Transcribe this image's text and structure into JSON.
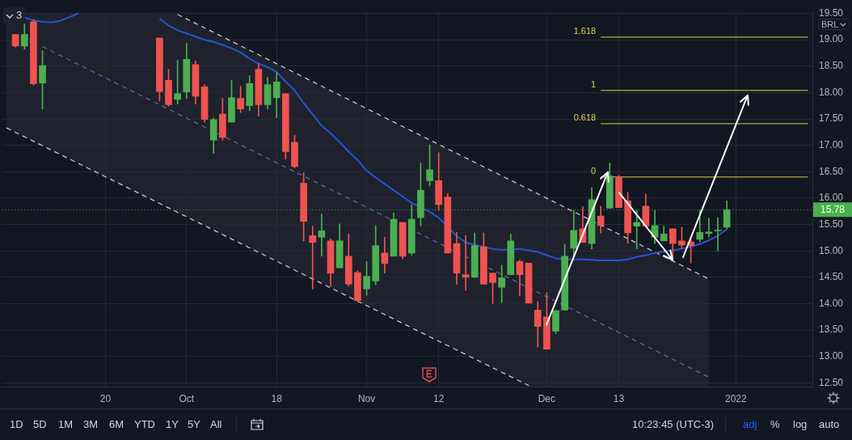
{
  "chart_data": {
    "type": "candlestick",
    "categories": [
      null,
      null,
      null,
      null,
      null,
      null,
      null,
      null,
      null,
      null,
      null,
      "20",
      null,
      null,
      null,
      null,
      null,
      null,
      null,
      null,
      "Oct",
      null,
      null,
      null,
      null,
      null,
      null,
      null,
      null,
      null,
      "18",
      null,
      null,
      null,
      null,
      null,
      null,
      null,
      null,
      null,
      "Nov",
      null,
      null,
      null,
      null,
      null,
      null,
      null,
      "12",
      null,
      null,
      null,
      null,
      null,
      null,
      null,
      null,
      null,
      null,
      null,
      "Dec",
      null,
      null,
      null,
      null,
      null,
      null,
      null,
      "13",
      null,
      null,
      null,
      null,
      null,
      null,
      null,
      null,
      null,
      null,
      null,
      null,
      "2022",
      null,
      null,
      null,
      null,
      null,
      null,
      null,
      null
    ],
    "ohlc": [
      null,
      [
        19.1,
        19.1,
        18.86,
        18.88
      ],
      [
        18.88,
        19.3,
        18.82,
        19.1
      ],
      [
        19.34,
        19.38,
        18.14,
        18.17
      ],
      [
        18.18,
        18.79,
        17.69,
        18.51
      ],
      null,
      null,
      null,
      null,
      null,
      null,
      null,
      null,
      null,
      null,
      null,
      null,
      [
        19.03,
        19.03,
        17.84,
        18.02
      ],
      [
        18.23,
        18.44,
        17.74,
        17.77
      ],
      [
        17.87,
        18.61,
        17.78,
        17.98
      ],
      [
        18.01,
        18.93,
        17.89,
        18.63
      ],
      [
        18.53,
        18.6,
        17.78,
        17.93
      ],
      [
        18.11,
        18.15,
        17.44,
        17.49
      ],
      [
        17.1,
        17.52,
        16.85,
        17.49
      ],
      [
        17.59,
        17.89,
        17.1,
        17.15
      ],
      [
        17.44,
        18.23,
        17.44,
        17.9
      ],
      [
        17.89,
        18.12,
        17.62,
        17.69
      ],
      [
        17.75,
        18.32,
        17.66,
        18.17
      ],
      [
        18.44,
        18.55,
        17.55,
        17.77
      ],
      [
        17.77,
        18.29,
        17.69,
        18.15
      ],
      [
        17.9,
        18.38,
        17.52,
        18.2
      ],
      [
        17.98,
        17.98,
        16.74,
        16.88
      ],
      [
        17.06,
        17.19,
        16.57,
        16.6
      ],
      [
        16.28,
        16.48,
        15.19,
        15.56
      ],
      [
        15.29,
        15.47,
        14.28,
        15.16
      ],
      [
        15.26,
        15.7,
        14.9,
        15.38
      ],
      [
        15.19,
        15.23,
        14.33,
        14.58
      ],
      [
        14.68,
        15.51,
        14.68,
        15.19
      ],
      [
        14.9,
        15.32,
        14.33,
        14.37
      ],
      [
        14.59,
        14.62,
        14.04,
        14.06
      ],
      [
        14.28,
        14.8,
        14.16,
        14.52
      ],
      [
        14.43,
        15.48,
        14.36,
        15.1
      ],
      [
        14.96,
        15.26,
        14.58,
        14.76
      ],
      [
        14.9,
        15.72,
        14.9,
        15.6
      ],
      [
        15.54,
        15.54,
        14.85,
        14.9
      ],
      [
        14.96,
        15.87,
        14.92,
        15.6
      ],
      [
        15.63,
        16.66,
        15.47,
        16.15
      ],
      [
        16.33,
        17.01,
        16.23,
        16.54
      ],
      [
        16.33,
        16.86,
        15.77,
        15.88
      ],
      [
        16.02,
        16.09,
        14.96,
        14.96
      ],
      [
        15.14,
        15.35,
        14.37,
        14.58
      ],
      [
        14.55,
        15.29,
        14.25,
        14.5
      ],
      [
        14.5,
        15.34,
        14.5,
        15.1
      ],
      [
        15.08,
        15.34,
        14.37,
        14.37
      ],
      [
        14.58,
        14.58,
        14.0,
        14.4
      ],
      [
        14.31,
        14.73,
        14.02,
        14.49
      ],
      [
        14.55,
        15.32,
        14.55,
        15.19
      ],
      [
        14.8,
        14.83,
        14.15,
        14.55
      ],
      [
        14.77,
        14.77,
        14.01,
        14.01
      ],
      [
        13.88,
        14.04,
        13.18,
        13.57
      ],
      [
        13.75,
        14.21,
        13.14,
        13.14
      ],
      [
        13.48,
        13.87,
        13.44,
        13.87
      ],
      [
        13.88,
        15.13,
        13.88,
        14.9
      ],
      [
        15.05,
        15.77,
        14.88,
        15.39
      ],
      [
        15.42,
        15.84,
        15.16,
        15.16
      ],
      [
        15.14,
        16.2,
        15.04,
        15.97
      ],
      [
        15.66,
        15.85,
        15.34,
        15.48
      ],
      [
        15.81,
        16.66,
        15.81,
        16.42
      ],
      [
        16.39,
        16.43,
        15.82,
        15.82
      ],
      [
        15.95,
        16.11,
        15.14,
        15.34
      ],
      [
        15.47,
        15.77,
        15.04,
        15.54
      ],
      [
        15.85,
        16.08,
        15.47,
        15.47
      ],
      [
        15.26,
        15.77,
        15.14,
        15.48
      ],
      [
        15.19,
        15.47,
        15.19,
        15.32
      ],
      [
        15.42,
        15.42,
        14.85,
        15.14
      ],
      [
        15.19,
        15.45,
        15.04,
        15.11
      ],
      [
        15.17,
        15.26,
        14.77,
        15.1
      ],
      [
        15.22,
        15.77,
        15.17,
        15.35
      ],
      [
        15.33,
        15.62,
        15.26,
        15.36
      ],
      [
        15.38,
        15.63,
        15.0,
        15.39
      ],
      [
        15.45,
        15.95,
        15.42,
        15.78
      ],
      null,
      null,
      null,
      null,
      null,
      null,
      null,
      null,
      null
    ],
    "colors": [
      null,
      "#ef5350",
      "#4caf50",
      "#ef5350",
      "#4caf50",
      null,
      null,
      null,
      null,
      null,
      null,
      null,
      null,
      null,
      null,
      null,
      null,
      "#ef5350",
      "#ef5350",
      "#4caf50",
      "#4caf50",
      "#ef5350",
      "#ef5350",
      "#4caf50",
      "#ef5350",
      "#4caf50",
      "#ef5350",
      "#4caf50",
      "#ef5350",
      "#4caf50",
      "#4caf50",
      "#ef5350",
      "#ef5350",
      "#ef5350",
      "#ef5350",
      "#4caf50",
      "#ef5350",
      "#4caf50",
      "#ef5350",
      "#ef5350",
      "#4caf50",
      "#4caf50",
      "#ef5350",
      "#4caf50",
      "#ef5350",
      "#4caf50",
      "#4caf50",
      "#4caf50",
      "#ef5350",
      "#ef5350",
      "#ef5350",
      "#ef5350",
      "#4caf50",
      "#ef5350",
      "#ef5350",
      "#4caf50",
      "#4caf50",
      "#ef5350",
      "#ef5350",
      "#ef5350",
      "#ef5350",
      "#4caf50",
      "#4caf50",
      "#4caf50",
      "#ef5350",
      "#4caf50",
      "#ef5350",
      "#4caf50",
      "#ef5350",
      "#ef5350",
      "#4caf50",
      "#ef5350",
      "#4caf50",
      "#4caf50",
      "#ef5350",
      "#ef5350",
      "#ef5350",
      "#4caf50",
      "#4caf50",
      "#4caf50",
      "#4caf50",
      null,
      null,
      null,
      null,
      null,
      null,
      null,
      null,
      null
    ],
    "series": [
      {
        "type": "line",
        "color": "#2255d4",
        "values": [
          null,
          19.47,
          19.42,
          19.37,
          19.34,
          19.33,
          19.36,
          19.43,
          19.5,
          null,
          null,
          null,
          null,
          null,
          null,
          null,
          null,
          null,
          null,
          null,
          null,
          null,
          null,
          null,
          null,
          null,
          null,
          null,
          null,
          null,
          null,
          null,
          null,
          null,
          null,
          null,
          null,
          null,
          null,
          null,
          null,
          null,
          null,
          null,
          null,
          null,
          null,
          null,
          null,
          null,
          null,
          null,
          null,
          null,
          null,
          null,
          null,
          null,
          null,
          null,
          null,
          null,
          null,
          null,
          null,
          null,
          null,
          null,
          null,
          null,
          null,
          null,
          null,
          null,
          null,
          null,
          null,
          null,
          null,
          null,
          null,
          null,
          null,
          null,
          null,
          null,
          null,
          null,
          null,
          null
        ]
      },
      {
        "type": "line",
        "color": "#2255d4",
        "values": [
          null,
          null,
          null,
          null,
          null,
          null,
          null,
          null,
          null,
          null,
          null,
          null,
          null,
          null,
          null,
          null,
          null,
          19.4,
          19.27,
          19.18,
          19.12,
          19.06,
          19.0,
          18.96,
          18.9,
          18.84,
          18.76,
          18.64,
          18.55,
          18.48,
          18.39,
          18.21,
          18.04,
          17.8,
          17.59,
          17.37,
          17.23,
          17.06,
          16.88,
          16.72,
          16.52,
          16.39,
          16.27,
          16.15,
          16.03,
          15.91,
          null,
          15.74,
          15.63,
          null,
          15.28,
          15.16,
          15.11,
          null,
          15.04,
          15.02,
          null,
          15.04,
          15.01,
          14.98,
          14.92,
          14.86,
          null,
          14.84,
          14.84,
          14.83,
          14.82,
          14.82,
          14.82,
          14.84,
          14.89,
          14.92,
          14.96,
          14.99,
          15.01,
          15.04,
          15.08,
          15.13,
          15.2,
          15.29,
          15.41,
          null,
          null,
          null,
          null,
          null,
          null,
          null,
          null,
          null
        ]
      },
      {
        "type": "line",
        "color": "#d1d4dc",
        "line_style": "dashed",
        "values": [
          null,
          null,
          null,
          null,
          null,
          null,
          null,
          null,
          null,
          null,
          null,
          null,
          null,
          null,
          null,
          null,
          null,
          null,
          null,
          19.48,
          null,
          null,
          null,
          null,
          null,
          null,
          null,
          null,
          null,
          null,
          null,
          null,
          null,
          null,
          null,
          null,
          null,
          null,
          null,
          null,
          null,
          null,
          null,
          null,
          null,
          null,
          null,
          null,
          null,
          null,
          null,
          null,
          null,
          null,
          null,
          null,
          null,
          null,
          null,
          null,
          null,
          null,
          null,
          null,
          null,
          null,
          null,
          null,
          null,
          null,
          null,
          null,
          null,
          null,
          null,
          null,
          null,
          null,
          14.47,
          null,
          null,
          null,
          null,
          null,
          null,
          null,
          null,
          null,
          null,
          null
        ]
      },
      {
        "type": "line",
        "color": "#d1d4dc",
        "line_style": "dashed",
        "values": [
          17.33,
          null,
          null,
          null,
          null,
          null,
          null,
          null,
          null,
          null,
          null,
          null,
          null,
          null,
          null,
          null,
          null,
          null,
          null,
          null,
          null,
          null,
          null,
          null,
          null,
          null,
          null,
          null,
          null,
          null,
          null,
          null,
          null,
          null,
          null,
          null,
          null,
          null,
          null,
          null,
          null,
          null,
          null,
          null,
          null,
          null,
          null,
          null,
          null,
          null,
          null,
          null,
          null,
          null,
          null,
          null,
          null,
          null,
          12.45,
          null,
          null,
          null,
          null,
          null,
          null,
          null,
          null,
          null,
          null,
          null,
          null,
          null,
          null,
          null,
          null,
          null,
          null,
          null,
          null,
          null,
          null,
          null,
          null,
          null,
          null,
          null,
          null,
          null,
          null,
          null
        ]
      },
      {
        "type": "line",
        "color": "#5a6bb0",
        "line_style": "dashed",
        "values": [
          null,
          null,
          null,
          null,
          18.87,
          null,
          null,
          null,
          null,
          null,
          null,
          null,
          null,
          null,
          null,
          null,
          null,
          null,
          null,
          null,
          null,
          null,
          null,
          null,
          null,
          null,
          null,
          null,
          null,
          null,
          null,
          null,
          null,
          null,
          null,
          null,
          null,
          null,
          null,
          null,
          null,
          null,
          null,
          null,
          null,
          null,
          null,
          null,
          null,
          null,
          null,
          null,
          null,
          null,
          null,
          null,
          null,
          null,
          null,
          null,
          null,
          null,
          null,
          null,
          null,
          null,
          null,
          null,
          null,
          null,
          null,
          null,
          null,
          null,
          null,
          null,
          null,
          null,
          12.61,
          null,
          null,
          null,
          null,
          null,
          null,
          null,
          null,
          null,
          null,
          null
        ]
      },
      {
        "type": "line",
        "name": "1.618",
        "color": "#e0cf4a",
        "values": [
          null,
          null,
          null,
          null,
          null,
          null,
          null,
          null,
          null,
          null,
          null,
          null,
          null,
          null,
          null,
          null,
          null,
          null,
          null,
          null,
          null,
          null,
          null,
          null,
          null,
          null,
          null,
          null,
          null,
          null,
          null,
          null,
          null,
          null,
          null,
          null,
          null,
          null,
          null,
          null,
          null,
          null,
          null,
          null,
          null,
          null,
          null,
          null,
          null,
          null,
          null,
          null,
          null,
          null,
          null,
          null,
          null,
          null,
          null,
          null,
          null,
          null,
          null,
          null,
          null,
          null,
          19.05,
          null,
          null,
          null,
          null,
          null,
          null,
          null,
          null,
          null,
          null,
          null,
          null,
          null,
          null,
          null,
          null,
          null,
          null,
          null,
          null,
          null,
          null,
          19.05
        ]
      },
      {
        "type": "line",
        "name": "1",
        "color": "#e0cf4a",
        "values": [
          null,
          null,
          null,
          null,
          null,
          null,
          null,
          null,
          null,
          null,
          null,
          null,
          null,
          null,
          null,
          null,
          null,
          null,
          null,
          null,
          null,
          null,
          null,
          null,
          null,
          null,
          null,
          null,
          null,
          null,
          null,
          null,
          null,
          null,
          null,
          null,
          null,
          null,
          null,
          null,
          null,
          null,
          null,
          null,
          null,
          null,
          null,
          null,
          null,
          null,
          null,
          null,
          null,
          null,
          null,
          null,
          null,
          null,
          null,
          null,
          null,
          null,
          null,
          null,
          null,
          null,
          18.04,
          null,
          null,
          null,
          null,
          null,
          null,
          null,
          null,
          null,
          null,
          null,
          null,
          null,
          null,
          null,
          null,
          null,
          null,
          null,
          null,
          null,
          null,
          18.04
        ]
      },
      {
        "type": "line",
        "name": "0.618",
        "color": "#e0cf4a",
        "values": [
          null,
          null,
          null,
          null,
          null,
          null,
          null,
          null,
          null,
          null,
          null,
          null,
          null,
          null,
          null,
          null,
          null,
          null,
          null,
          null,
          null,
          null,
          null,
          null,
          null,
          null,
          null,
          null,
          null,
          null,
          null,
          null,
          null,
          null,
          null,
          null,
          null,
          null,
          null,
          null,
          null,
          null,
          null,
          null,
          null,
          null,
          null,
          null,
          null,
          null,
          null,
          null,
          null,
          null,
          null,
          null,
          null,
          null,
          null,
          null,
          null,
          null,
          null,
          null,
          null,
          null,
          17.41,
          null,
          null,
          null,
          null,
          null,
          null,
          null,
          null,
          null,
          null,
          null,
          null,
          null,
          null,
          null,
          null,
          null,
          null,
          null,
          null,
          null,
          null,
          17.41
        ]
      },
      {
        "type": "line",
        "name": "0",
        "color": "#e0cf4a",
        "values": [
          null,
          null,
          null,
          null,
          null,
          null,
          null,
          null,
          null,
          null,
          null,
          null,
          null,
          null,
          null,
          null,
          null,
          null,
          null,
          null,
          null,
          null,
          null,
          null,
          null,
          null,
          null,
          null,
          null,
          null,
          null,
          null,
          null,
          null,
          null,
          null,
          null,
          null,
          null,
          null,
          null,
          null,
          null,
          null,
          null,
          null,
          null,
          null,
          null,
          null,
          null,
          null,
          null,
          null,
          null,
          null,
          null,
          null,
          null,
          null,
          null,
          null,
          null,
          null,
          null,
          null,
          16.4,
          null,
          null,
          null,
          null,
          null,
          null,
          null,
          null,
          null,
          null,
          null,
          null,
          null,
          null,
          null,
          null,
          null,
          null,
          null,
          null,
          null,
          null,
          16.4
        ]
      }
    ],
    "ylim": [
      12.43,
      19.52
    ],
    "yticks": [
      {
        "value": 12.5,
        "label": "12.50"
      },
      {
        "value": 13,
        "label": "13.00"
      },
      {
        "value": 13.5,
        "label": "13.50"
      },
      {
        "value": 14,
        "label": "14.00"
      },
      {
        "value": 14.5,
        "label": "14.50"
      },
      {
        "value": 15,
        "label": "15.00"
      },
      {
        "value": 15.5,
        "label": "15.50"
      },
      {
        "value": 16,
        "label": "16.00"
      },
      {
        "value": 16.5,
        "label": "16.50"
      },
      {
        "value": 17,
        "label": "17.00"
      },
      {
        "value": 17.5,
        "label": "17.50"
      },
      {
        "value": 18,
        "label": "18.00"
      },
      {
        "value": 18.5,
        "label": "18.50"
      },
      {
        "value": 19,
        "label": "19.00"
      },
      {
        "value": 19.5,
        "label": "19.50"
      }
    ],
    "grid": true,
    "ref_lines": [
      {
        "axis": "y",
        "value": 15.78,
        "label": "15.78",
        "color": "#4caf50",
        "line_style": "dotted"
      }
    ],
    "annotations": [
      "3",
      "BRL",
      "1D",
      "5D",
      "1M",
      "3M",
      "6M",
      "YTD",
      "1Y",
      "5Y",
      "All",
      "10:23:45 (UTC-3)",
      "adj",
      "%",
      "log",
      "auto"
    ]
  }
}
